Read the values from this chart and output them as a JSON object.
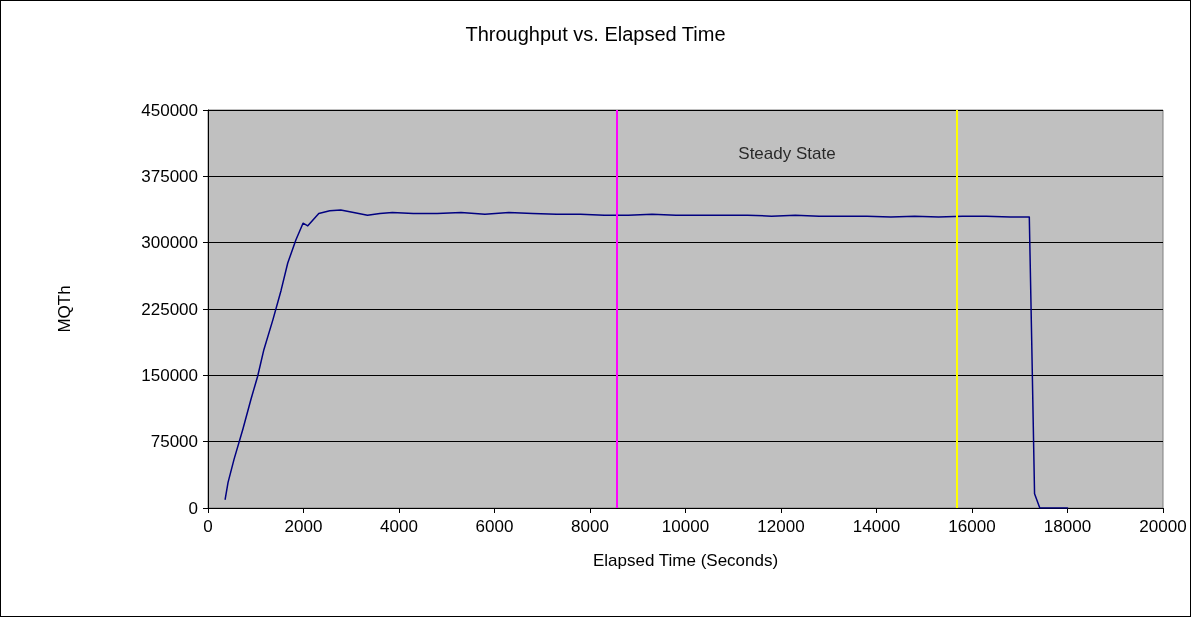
{
  "chart_data": {
    "type": "line",
    "title": "Throughput vs. Elapsed Time",
    "xlabel": "Elapsed Time (Seconds)",
    "ylabel": "MQTh",
    "x": [
      360,
      420,
      545,
      730,
      900,
      1040,
      1170,
      1360,
      1530,
      1670,
      1840,
      1990,
      2090,
      2320,
      2550,
      2780,
      3050,
      3340,
      3600,
      3860,
      4300,
      4800,
      5300,
      5800,
      6300,
      6800,
      7300,
      7800,
      8300,
      8800,
      9300,
      9800,
      10300,
      10800,
      11300,
      11800,
      12300,
      12800,
      13300,
      13800,
      14300,
      14800,
      15300,
      15800,
      16300,
      16800,
      17200,
      17250,
      17310,
      17420,
      18000
    ],
    "series": [
      {
        "color": "#000080",
        "values": [
          10000,
          29000,
          55000,
          89000,
          123000,
          149000,
          179000,
          213000,
          246000,
          277000,
          303000,
          322000,
          319000,
          333000,
          336000,
          337000,
          334000,
          331000,
          333000,
          334000,
          333000,
          333000,
          334000,
          332000,
          334000,
          333000,
          332000,
          332000,
          331000,
          331000,
          332000,
          331000,
          331000,
          331000,
          331000,
          330000,
          331000,
          330000,
          330000,
          330000,
          329000,
          330000,
          329000,
          330000,
          330000,
          329000,
          329000,
          190000,
          16000,
          0,
          0
        ]
      }
    ],
    "xlim": [
      0,
      20000
    ],
    "xticks": [
      0,
      2000,
      4000,
      6000,
      8000,
      10000,
      12000,
      14000,
      16000,
      18000,
      20000
    ],
    "ylim": [
      0,
      450000
    ],
    "yticks": [
      0,
      75000,
      150000,
      225000,
      300000,
      375000,
      450000
    ],
    "grid": "y",
    "marker": "none",
    "line_style": "solid",
    "ref_lines": [
      {
        "axis": "x",
        "value": 8570,
        "color": "#ff00ff"
      },
      {
        "axis": "x",
        "value": 15680,
        "color": "#ffff00"
      }
    ],
    "annotations": [
      "Steady State"
    ]
  }
}
